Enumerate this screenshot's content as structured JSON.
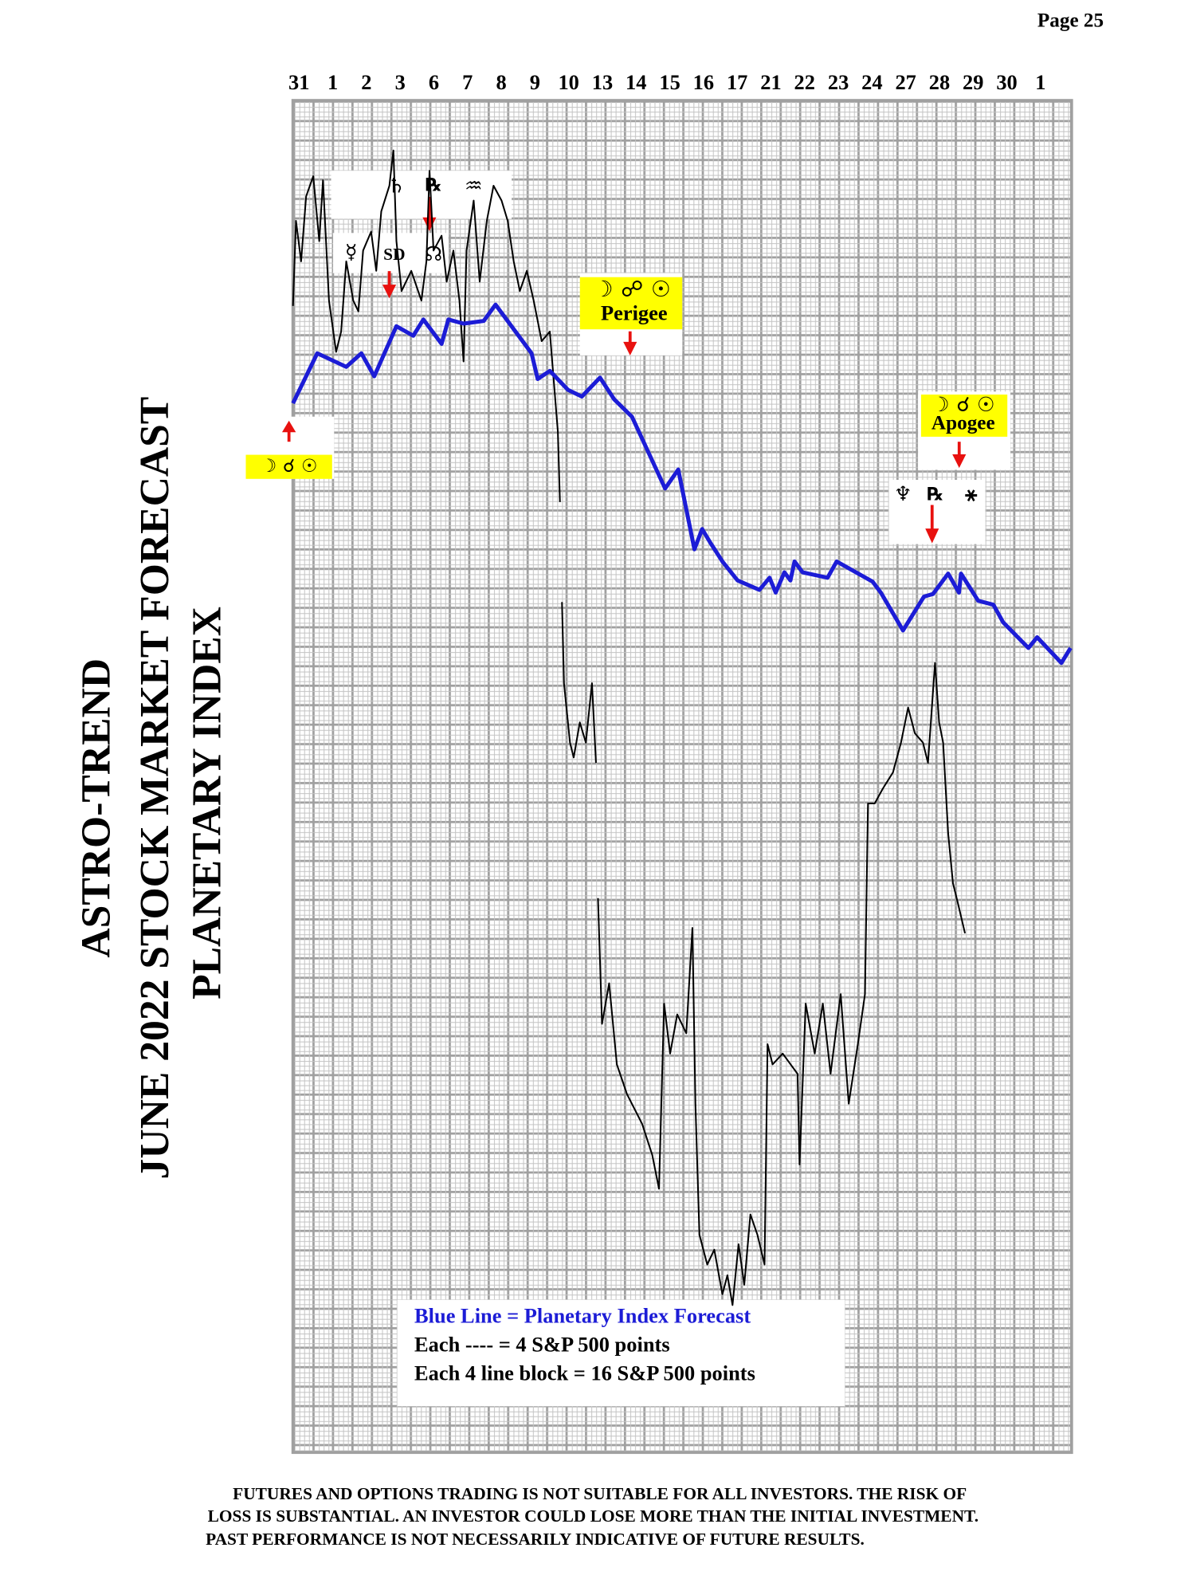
{
  "page_number": "Page  25",
  "title_lines": [
    "ASTRO-TREND",
    "JUNE 2022  STOCK MARKET FORECAST",
    "PLANETARY INDEX"
  ],
  "chart_data": {
    "type": "line",
    "categories": [
      "31",
      "1",
      "2",
      "3",
      "6",
      "7",
      "8",
      "9",
      "10",
      "13",
      "14",
      "15",
      "16",
      "17",
      "21",
      "22",
      "23",
      "24",
      "27",
      "28",
      "29",
      "30",
      "1"
    ],
    "xlim": [
      -0.18,
      22.92
    ],
    "ylim": [
      0,
      100
    ],
    "series": [
      {
        "color": "#1c1cd6",
        "x": [
          -0.18,
          0.54,
          1.4,
          1.85,
          2.23,
          2.89,
          3.39,
          3.69,
          4.23,
          4.43,
          4.88,
          5.48,
          5.83,
          6.9,
          7.08,
          7.44,
          7.98,
          8.39,
          8.93,
          9.35,
          9.88,
          10.86,
          11.25,
          11.73,
          11.96,
          12.2,
          12.56,
          13.01,
          13.66,
          13.96,
          14.14,
          14.4,
          14.58,
          14.7,
          14.94,
          15.68,
          15.95,
          17.02,
          17.26,
          17.92,
          18.54,
          18.81,
          19.26,
          19.58,
          19.64,
          20.15,
          20.6,
          20.89,
          21.64,
          21.9,
          22.62,
          22.89
        ],
        "values": [
          77.6,
          81.3,
          80.3,
          81.3,
          79.6,
          83.3,
          82.6,
          83.8,
          82.0,
          83.8,
          83.5,
          83.7,
          84.9,
          81.3,
          79.4,
          80.0,
          78.6,
          78.1,
          79.5,
          77.9,
          76.6,
          71.3,
          72.7,
          66.8,
          68.3,
          67.3,
          65.9,
          64.5,
          63.8,
          64.7,
          63.6,
          65.1,
          64.5,
          65.9,
          65.1,
          64.7,
          65.9,
          64.4,
          63.6,
          60.8,
          63.3,
          63.5,
          65.0,
          63.6,
          65.0,
          63.0,
          62.7,
          61.4,
          59.5,
          60.3,
          58.4,
          59.5
        ]
      },
      {
        "color": "#000000",
        "x": [
          -0.18,
          -0.09,
          0.06,
          0.21,
          0.42,
          0.6,
          0.71,
          0.89,
          1.1,
          1.25,
          1.4,
          1.61,
          1.76,
          1.9,
          2.14,
          2.29,
          2.44,
          2.68,
          2.8,
          2.89,
          3.04,
          3.33,
          3.63,
          3.78,
          3.87,
          3.99,
          4.23,
          4.38,
          4.58,
          4.76,
          4.88,
          4.97,
          5.18,
          5.36,
          5.57,
          5.77,
          6.01,
          6.19,
          6.37,
          6.55,
          6.76,
          6.96,
          7.2,
          7.44,
          7.56,
          7.68,
          7.74,
          7.77,
          7.8,
          7.86,
          8.04,
          8.15,
          8.33,
          8.51,
          8.69,
          8.81,
          8.84,
          8.87,
          8.99,
          9.2,
          9.43,
          9.73,
          10.18,
          10.48,
          10.68,
          10.83,
          11.01,
          11.22,
          11.49,
          11.67,
          11.76,
          11.88,
          12.11,
          12.32,
          12.56,
          12.71,
          12.86,
          13.04,
          13.21,
          13.39,
          13.6,
          13.81,
          13.9,
          14.05,
          14.35,
          14.79,
          14.85,
          15.03,
          15.3,
          15.54,
          15.77,
          16.07,
          16.31,
          16.58,
          16.79,
          16.88,
          17.08,
          17.32,
          17.62,
          17.86,
          18.07,
          18.27,
          18.51,
          18.66,
          18.87,
          18.99,
          19.11,
          19.26,
          19.4,
          19.55,
          19.76
        ],
        "values": [
          84.8,
          91.1,
          88.1,
          92.9,
          94.4,
          89.6,
          94.1,
          85.2,
          81.4,
          82.9,
          88.1,
          85.2,
          84.4,
          88.9,
          90.3,
          87.4,
          91.8,
          93.7,
          96.3,
          89.6,
          85.9,
          87.4,
          85.2,
          88.1,
          94.8,
          88.9,
          90.0,
          86.6,
          88.9,
          85.2,
          80.7,
          88.9,
          92.6,
          86.6,
          91.1,
          93.7,
          92.6,
          91.1,
          88.1,
          85.9,
          87.4,
          85.2,
          82.2,
          82.9,
          79.2,
          75.5,
          70.3,
          null,
          62.9,
          56.9,
          52.5,
          51.4,
          54.0,
          52.5,
          56.9,
          51.0,
          null,
          41.0,
          31.7,
          34.7,
          28.7,
          26.5,
          24.3,
          22.0,
          19.5,
          33.2,
          29.5,
          32.4,
          31.0,
          38.8,
          25.8,
          16.1,
          13.9,
          15.0,
          11.7,
          13.1,
          10.9,
          15.4,
          12.4,
          17.6,
          16.1,
          13.9,
          30.2,
          28.7,
          29.5,
          28.0,
          21.3,
          33.2,
          29.5,
          33.2,
          28.0,
          33.9,
          25.8,
          30.2,
          33.9,
          48.0,
          48.0,
          49.1,
          50.3,
          52.5,
          55.1,
          53.2,
          52.5,
          51.0,
          58.4,
          54.0,
          52.5,
          45.8,
          42.1,
          40.6,
          38.4
        ]
      }
    ],
    "legend": [
      "Blue Line = Planetary Index Forecast",
      "Each ---- =   4 S&P 500 points",
      "Each 4 line block =  16  S&P 500 points"
    ],
    "annotations": [
      "☽ ☌ ☉",
      "♄",
      "℞",
      "♒",
      "☿",
      "SD",
      "☊",
      "☽ ☍ ☉",
      "Perigee",
      "☽ ☌ ☉",
      "Apogee",
      "♆",
      "℞",
      "⚹"
    ]
  },
  "disclaimer": [
    "FUTURES AND OPTIONS TRADING IS NOT SUITABLE FOR ALL INVESTORS.  THE RISK OF",
    "LOSS IS SUBSTANTIAL.  AN INVESTOR COULD LOSE MORE THAN THE INITIAL INVESTMENT.",
    "PAST PERFORMANCE IS NOT NECESSARILY INDICATIVE OF FUTURE RESULTS."
  ]
}
